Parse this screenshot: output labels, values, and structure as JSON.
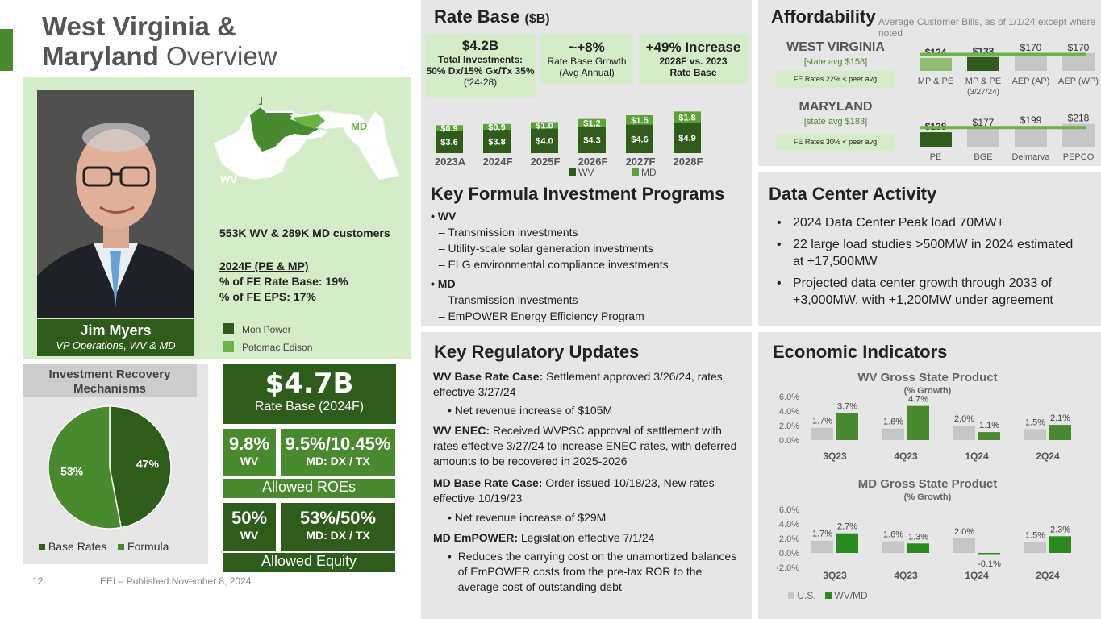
{
  "header": {
    "title_bold1": "West Virginia &",
    "title_bold2": "Maryland",
    "title_light": "Overview"
  },
  "person": {
    "name": "Jim Myers",
    "role": "VP Operations, WV & MD"
  },
  "map": {
    "wv_label": "WV",
    "md_label": "MD"
  },
  "overview": {
    "customers": "553K WV & 289K MD customers",
    "rb_heading": "2024F (PE & MP)",
    "rb_line": "% of FE Rate Base: 19%",
    "eps_line": "% of FE EPS: 17%",
    "legend": [
      "Mon Power",
      "Potomac Edison"
    ]
  },
  "recovery": {
    "title": "Investment Recovery Mechanisms",
    "slices": [
      {
        "label": "Base Rates",
        "value": 47,
        "text": "47%",
        "color": "#2e5c1a"
      },
      {
        "label": "Formula",
        "value": 53,
        "text": "53%",
        "color": "#4a8a2e"
      }
    ]
  },
  "stats": {
    "rb_value": "$4.7B",
    "rb_label": "Rate Base (2024F)",
    "roe_wv": "9.8%",
    "roe_wv_sub": "WV",
    "roe_md": "9.5%/10.45%",
    "roe_md_sub": "MD: DX / TX",
    "roe_label": "Allowed ROEs",
    "eq_wv": "50%",
    "eq_wv_sub": "WV",
    "eq_md": "53%/50%",
    "eq_md_sub": "MD: DX / TX",
    "eq_label": "Allowed Equity"
  },
  "footer": {
    "page": "12",
    "published": "EEI – Published November 8, 2024"
  },
  "rate_base": {
    "title": "Rate Base",
    "unit": "($B)",
    "callouts": [
      {
        "big": "$4.2B",
        "l1": "Total Investments:",
        "l2": "50% Dx/15% Gx/Tx 35%",
        "l3": "(‘24-28)"
      },
      {
        "big": "~+8%",
        "l1": "Rate Base Growth",
        "l2": "(Avg Annual)",
        "l3": ""
      },
      {
        "big": "+49% Increase",
        "l1": "2028F vs. 2023",
        "l2": "Rate Base",
        "l3": ""
      }
    ]
  },
  "key_formula": {
    "title": "Key Formula Investment Programs",
    "groups": [
      {
        "head": "WV",
        "items": [
          "Transmission investments",
          "Utility-scale solar generation investments",
          "ELG environmental compliance investments"
        ]
      },
      {
        "head": "MD",
        "items": [
          "Transmission investments",
          "EmPOWER Energy Efficiency Program"
        ]
      }
    ]
  },
  "regulatory": {
    "title": "Key Regulatory Updates",
    "wv_base_b": "WV Base Rate Case:",
    "wv_base_t": " Settlement approved 3/26/24, rates effective 3/27/24",
    "wv_base_bullet": "Net revenue increase of $105M",
    "wv_enec_b": "WV ENEC:",
    "wv_enec_t": " Received WVPSC approval of settlement with rates effective 3/27/24 to increase ENEC rates, with deferred amounts to be recovered in 2025-2026",
    "md_base_b": "MD Base Rate Case:",
    "md_base_t": " Order issued 10/18/23, New rates effective 10/19/23",
    "md_base_bullet": "Net revenue increase of $29M",
    "md_emp_b": "MD EmPOWER:",
    "md_emp_t": " Legislation effective 7/1/24",
    "md_emp_bullet": "Reduces the carrying cost on the unamortized balances of EmPOWER costs from the pre-tax ROR to the average cost of outstanding debt"
  },
  "affordability": {
    "title": "Affordability",
    "subtitle": "Average Customer Bills, as of 1/1/24 except where noted",
    "wv": {
      "name": "WEST VIRGINIA",
      "avg": "[state avg $158]",
      "note": "FE Rates 22% < peer avg"
    },
    "md": {
      "name": "MARYLAND",
      "avg": "[state avg $183]",
      "note": "FE Rates 30% < peer avg"
    }
  },
  "data_center": {
    "title": "Data Center Activity",
    "bullets": [
      "2024 Data Center Peak load 70MW+",
      "22 large load studies >500MW in 2024 estimated at +17,500MW",
      "Projected data center growth through 2033 of +3,000MW, with +1,200MW under agreement"
    ]
  },
  "economic": {
    "title": "Economic Indicators",
    "legend": [
      "U.S.",
      "WV/MD"
    ]
  },
  "chart_data": [
    {
      "type": "bar",
      "title": "Rate Base ($B)",
      "stacked": true,
      "categories": [
        "2023A",
        "2024F",
        "2025F",
        "2026F",
        "2027F",
        "2028F"
      ],
      "series": [
        {
          "name": "WV",
          "values": [
            3.6,
            3.8,
            4.0,
            4.3,
            4.6,
            4.9
          ],
          "labels": [
            "$3.6",
            "$3.8",
            "$4.0",
            "$4.3",
            "$4.6",
            "$4.9"
          ],
          "color": "#2e5c1a"
        },
        {
          "name": "MD",
          "values": [
            0.9,
            0.9,
            1.0,
            1.2,
            1.5,
            1.8
          ],
          "labels": [
            "$0.9",
            "$0.9",
            "$1.0",
            "$1.2",
            "$1.5",
            "$1.8"
          ],
          "color": "#5aa338"
        }
      ]
    },
    {
      "type": "bar",
      "title": "West Virginia Average Customer Bills",
      "categories": [
        "MP & PE",
        "MP & PE\n(3/27/24)",
        "AEP (AP)",
        "AEP (WP)"
      ],
      "values": [
        124,
        133,
        170,
        170
      ],
      "labels": [
        "$124",
        "$133",
        "$170",
        "$170"
      ],
      "colors": [
        "#8fbf73",
        "#2e5c1a",
        "#c6c6c6",
        "#c6c6c6"
      ],
      "reference": 158
    },
    {
      "type": "bar",
      "title": "Maryland Average Customer Bills",
      "categories": [
        "PE",
        "BGE",
        "Delmarva",
        "PEPCO"
      ],
      "values": [
        138,
        177,
        199,
        218
      ],
      "labels": [
        "$138",
        "$177",
        "$199",
        "$218"
      ],
      "colors": [
        "#2e5c1a",
        "#c6c6c6",
        "#c6c6c6",
        "#c6c6c6"
      ],
      "reference": 183
    },
    {
      "type": "bar",
      "title": "WV Gross State Product",
      "subtitle": "(% Growth)",
      "categories": [
        "3Q23",
        "4Q23",
        "1Q24",
        "2Q24"
      ],
      "ylim": [
        0,
        6
      ],
      "yticks": [
        "0.0%",
        "2.0%",
        "4.0%",
        "6.0%"
      ],
      "series": [
        {
          "name": "U.S.",
          "values": [
            1.7,
            1.6,
            2.0,
            1.5
          ],
          "labels": [
            "1.7%",
            "1.6%",
            "2.0%",
            "1.5%"
          ],
          "color": "#c6c6c6"
        },
        {
          "name": "WV/MD",
          "values": [
            3.7,
            4.7,
            1.1,
            2.1
          ],
          "labels": [
            "3.7%",
            "4.7%",
            "1.1%",
            "2.1%"
          ],
          "color": "#4a8a2e"
        }
      ]
    },
    {
      "type": "bar",
      "title": "MD Gross State Product",
      "subtitle": "(% Growth)",
      "categories": [
        "3Q23",
        "4Q23",
        "1Q24",
        "2Q24"
      ],
      "ylim": [
        -2,
        6
      ],
      "yticks": [
        "-2.0%",
        "0.0%",
        "2.0%",
        "4.0%",
        "6.0%"
      ],
      "series": [
        {
          "name": "U.S.",
          "values": [
            1.7,
            1.6,
            2.0,
            1.5
          ],
          "labels": [
            "1.7%",
            "1.6%",
            "2.0%",
            "1.5%"
          ],
          "color": "#c6c6c6"
        },
        {
          "name": "WV/MD",
          "values": [
            2.7,
            1.3,
            -0.1,
            2.3
          ],
          "labels": [
            "2.7%",
            "1.3%",
            "-0.1%",
            "2.3%"
          ],
          "color": "#2a8a1e"
        }
      ]
    }
  ]
}
